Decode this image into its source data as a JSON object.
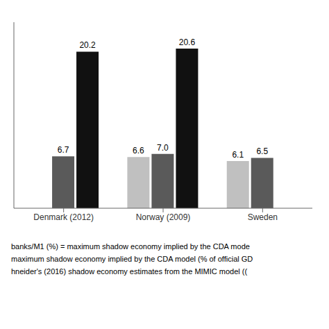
{
  "chart_data": {
    "type": "bar",
    "categories": [
      "Denmark (2012)",
      "Norway (2009)",
      "Sweden"
    ],
    "series": [
      {
        "color": "#c0c0c0",
        "values": [
          null,
          6.6,
          6.1
        ]
      },
      {
        "color": "#5a5a5a",
        "values": [
          6.7,
          7.0,
          6.5
        ],
        "value_labels": [
          "6.7",
          "7.0",
          "6.5"
        ]
      },
      {
        "color": "#111111",
        "values": [
          20.2,
          20.6,
          null
        ]
      }
    ],
    "ylim": [
      0,
      24
    ],
    "data_labels": true,
    "tick_labels": "x",
    "grid": false,
    "annotations": [
      "banks/M1 (%) = maximum shadow economy implied by the CDA mode",
      "maximum shadow economy implied by the CDA model (% of official GD",
      "hneider's (2016) shadow economy estimates from the MIMIC model (("
    ]
  }
}
